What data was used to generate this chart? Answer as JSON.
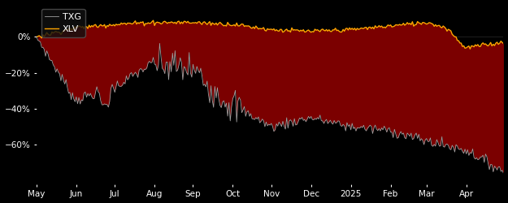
{
  "background_color": "#000000",
  "plot_bg_color": "#000000",
  "fill_color_dark_red": "#7B0000",
  "fill_color_black": "#000000",
  "txg_line_color": "#a0a0a0",
  "xlv_line_color": "#FFA500",
  "x_labels": [
    "May",
    "Jun",
    "Jul",
    "Aug",
    "Sep",
    "Oct",
    "Nov",
    "Dec",
    "2025",
    "Feb",
    "Mar",
    "Apr"
  ],
  "ylim": [
    -82,
    18
  ],
  "yticks": [
    0,
    -20,
    -40,
    -60
  ],
  "ytick_labels": [
    "0%",
    "−20%",
    "−40%",
    "−60%"
  ],
  "legend_txg": "TXG",
  "legend_xlv": "XLV"
}
